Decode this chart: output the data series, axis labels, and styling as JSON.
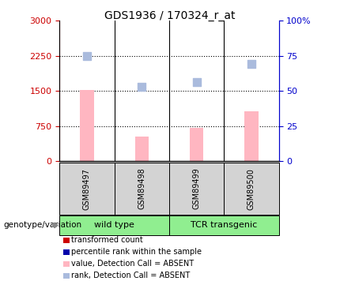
{
  "title": "GDS1936 / 170324_r_at",
  "samples": [
    "GSM89497",
    "GSM89498",
    "GSM89499",
    "GSM89500"
  ],
  "bar_values_absent": [
    1530,
    530,
    720,
    1060
  ],
  "rank_values_absent": [
    2240,
    1590,
    1690,
    2080
  ],
  "left_ylim": [
    0,
    3000
  ],
  "right_ylim": [
    0,
    100
  ],
  "left_yticks": [
    0,
    750,
    1500,
    2250,
    3000
  ],
  "right_yticks": [
    0,
    25,
    50,
    75,
    100
  ],
  "left_yticklabels": [
    "0",
    "750",
    "1500",
    "2250",
    "3000"
  ],
  "right_yticklabels": [
    "0",
    "25",
    "50",
    "75",
    "100%"
  ],
  "bar_color_absent": "#FFB6C1",
  "rank_color_absent": "#AABBDD",
  "sample_box_color": "#D3D3D3",
  "group_box_color": "#90EE90",
  "left_axis_color": "#CC0000",
  "right_axis_color": "#0000CC",
  "legend_colors": [
    "#CC0000",
    "#0000AA",
    "#FFB6C1",
    "#AABBDD"
  ],
  "legend_labels": [
    "transformed count",
    "percentile rank within the sample",
    "value, Detection Call = ABSENT",
    "rank, Detection Call = ABSENT"
  ],
  "genotype_label": "genotype/variation",
  "wt_label": "wild type",
  "tcr_label": "TCR transgenic"
}
